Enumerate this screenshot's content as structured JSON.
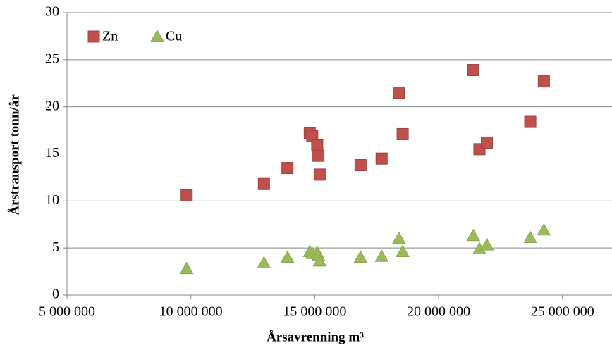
{
  "chart_data": {
    "type": "scatter",
    "x_label": "Årsavrenning m³",
    "y_label": "Årstransport tonn/år",
    "x": [
      9830000,
      12950000,
      13900000,
      14800000,
      14900000,
      15100000,
      15150000,
      15200000,
      16850000,
      17700000,
      18400000,
      18550000,
      21400000,
      21650000,
      21950000,
      23700000,
      24250000
    ],
    "series": [
      {
        "name": "Zn",
        "color": "#c0504d",
        "marker": "square",
        "values": [
          10.6,
          11.8,
          13.5,
          17.2,
          16.9,
          15.9,
          14.8,
          12.8,
          13.8,
          14.5,
          21.5,
          17.1,
          23.9,
          15.5,
          16.2,
          18.4,
          22.7
        ]
      },
      {
        "name": "Cu",
        "color": "#9bbb59",
        "marker": "triangle",
        "values": [
          2.8,
          3.4,
          4.0,
          4.6,
          4.4,
          4.5,
          4.2,
          3.6,
          4.0,
          4.1,
          6.0,
          4.6,
          6.3,
          4.9,
          5.3,
          6.1,
          6.9
        ]
      }
    ],
    "xlim": [
      5000000,
      27000000
    ],
    "xticks": [
      {
        "value": 5000000,
        "label": "5 000 000"
      },
      {
        "value": 10000000,
        "label": "10 000 000"
      },
      {
        "value": 15000000,
        "label": "15 000 000"
      },
      {
        "value": 20000000,
        "label": "20 000 000"
      },
      {
        "value": 25000000,
        "label": "25 000 000"
      }
    ],
    "ylim": [
      0,
      30
    ],
    "yticks": [
      0,
      5,
      10,
      15,
      20,
      25,
      30
    ],
    "grid": true,
    "legend": "top-left"
  }
}
